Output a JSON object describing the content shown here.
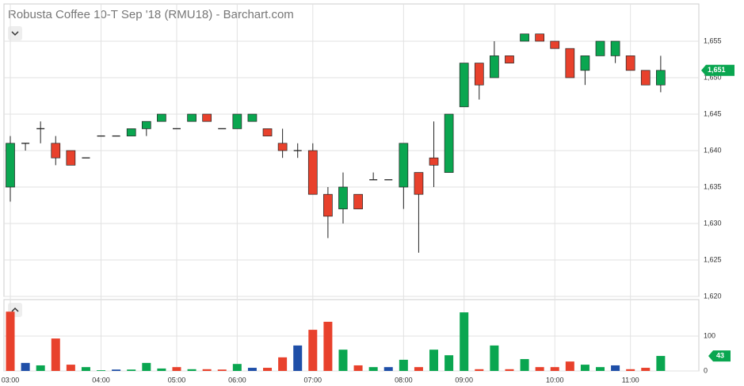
{
  "chart_data": [
    {
      "type": "candlestick",
      "title": "Robusta Coffee 10-T Sep '18 (RMU18) - Barchart.com",
      "categories": [
        "03:00",
        null,
        null,
        null,
        null,
        null,
        "04:00",
        null,
        null,
        null,
        null,
        "05:00",
        null,
        null,
        null,
        "06:00",
        null,
        null,
        null,
        null,
        "07:00",
        null,
        null,
        null,
        null,
        null,
        "08:00",
        null,
        null,
        null,
        "09:00",
        null,
        null,
        null,
        null,
        null,
        "10:00",
        null,
        null,
        null,
        null,
        "11:00",
        null,
        null
      ],
      "open": [
        1635,
        1641,
        1643,
        1641,
        1640,
        1639,
        1642,
        1642,
        1642,
        1643,
        1644,
        1643,
        1644,
        1645,
        1643,
        1643,
        1644,
        1643,
        1641,
        1640,
        1640,
        1634,
        1632,
        1634,
        1636,
        1636,
        1635,
        1637,
        1639,
        1637,
        1646,
        1652,
        1650,
        1653,
        1655,
        1656,
        1655,
        1654,
        1651,
        1653,
        1653,
        1653,
        1651,
        1649
      ],
      "high": [
        1642,
        1641,
        1644,
        1642,
        1640,
        1639,
        1642,
        1642,
        1643,
        1644,
        1645,
        1643,
        1645,
        1645,
        1643,
        1645,
        1645,
        1643,
        1643,
        1641,
        1641,
        1635,
        1637,
        1634,
        1637,
        1636,
        1641,
        1637,
        1644,
        1645,
        1652,
        1652,
        1655,
        1653,
        1656,
        1656,
        1655,
        1654,
        1653,
        1655,
        1655,
        1653,
        1651,
        1653
      ],
      "low": [
        1633,
        1640,
        1641,
        1638,
        1638,
        1639,
        1642,
        1642,
        1642,
        1642,
        1644,
        1643,
        1644,
        1644,
        1643,
        1643,
        1644,
        1642,
        1639,
        1639,
        1634,
        1628,
        1630,
        1632,
        1636,
        1636,
        1632,
        1626,
        1635,
        1637,
        1646,
        1647,
        1650,
        1652,
        1655,
        1655,
        1654,
        1650,
        1649,
        1653,
        1652,
        1651,
        1649,
        1648
      ],
      "close": [
        1641,
        1641,
        1643,
        1639,
        1638,
        1639,
        1642,
        1642,
        1643,
        1644,
        1645,
        1643,
        1645,
        1644,
        1643,
        1645,
        1645,
        1642,
        1640,
        1640,
        1634,
        1631,
        1635,
        1632,
        1636,
        1636,
        1641,
        1634,
        1638,
        1645,
        1652,
        1649,
        1653,
        1652,
        1656,
        1655,
        1654,
        1650,
        1653,
        1655,
        1655,
        1651,
        1649,
        1651
      ],
      "up_color": "#0aa650",
      "down_color": "#e8412c",
      "ylim": [
        1620,
        1660
      ],
      "yticks": [
        {
          "value": 1620,
          "label": "1,620"
        },
        {
          "value": 1625,
          "label": "1,625"
        },
        {
          "value": 1630,
          "label": "1,630"
        },
        {
          "value": 1635,
          "label": "1,635"
        },
        {
          "value": 1640,
          "label": "1,640"
        },
        {
          "value": 1645,
          "label": "1,645"
        },
        {
          "value": 1650,
          "label": "1,650"
        },
        {
          "value": 1655,
          "label": "1,655"
        }
      ],
      "last_price": {
        "value": 1651,
        "label": "1,651"
      },
      "grid": true
    },
    {
      "type": "bar",
      "values": [
        170,
        23,
        16,
        93,
        18,
        11,
        2,
        4,
        4,
        23,
        7,
        11,
        5,
        5,
        4,
        20,
        9,
        9,
        39,
        73,
        118,
        141,
        61,
        16,
        11,
        11,
        32,
        11,
        61,
        45,
        168,
        5,
        73,
        5,
        34,
        11,
        11,
        27,
        18,
        11,
        16,
        5,
        9,
        43
      ],
      "colors": [
        "#e8412c",
        "#1f4fa8",
        "#0aa650",
        "#e8412c",
        "#e8412c",
        "#0aa650",
        "#0aa650",
        "#1f4fa8",
        "#0aa650",
        "#0aa650",
        "#0aa650",
        "#e8412c",
        "#0aa650",
        "#e8412c",
        "#e8412c",
        "#0aa650",
        "#1f4fa8",
        "#e8412c",
        "#e8412c",
        "#1f4fa8",
        "#e8412c",
        "#e8412c",
        "#0aa650",
        "#e8412c",
        "#0aa650",
        "#1f4fa8",
        "#0aa650",
        "#e8412c",
        "#0aa650",
        "#0aa650",
        "#0aa650",
        "#e8412c",
        "#0aa650",
        "#e8412c",
        "#0aa650",
        "#e8412c",
        "#e8412c",
        "#e8412c",
        "#0aa650",
        "#0aa650",
        "#1f4fa8",
        "#e8412c",
        "#e8412c",
        "#0aa650"
      ],
      "ylim": [
        0,
        200
      ],
      "yticks": [
        0,
        100
      ],
      "last_value": 43,
      "grid": true
    }
  ]
}
